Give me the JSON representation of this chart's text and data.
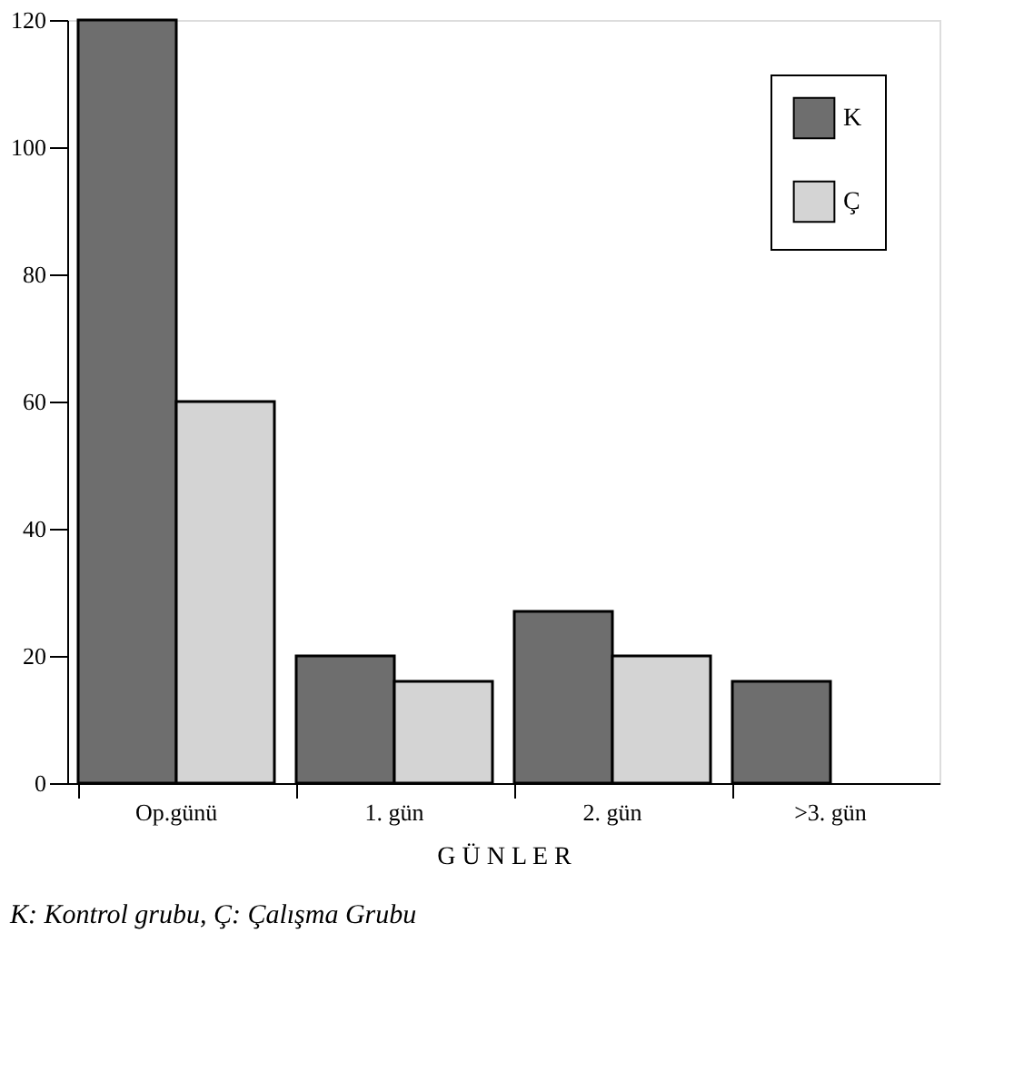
{
  "chart_data": {
    "type": "bar",
    "xlabel": "G Ü N L E R",
    "categories": [
      "Op.günü",
      "1. gün",
      "2. gün",
      ">3. gün"
    ],
    "series": [
      {
        "name": "K",
        "color": "#6e6e6e",
        "values": [
          120,
          20,
          27,
          16
        ]
      },
      {
        "name": "Ç",
        "color": "#d4d4d4",
        "values": [
          60,
          16,
          20,
          null
        ]
      }
    ],
    "ylim": [
      0,
      120
    ],
    "yticks": [
      0,
      20,
      40,
      60,
      80,
      100,
      120
    ],
    "grid": false,
    "legend": "top right",
    "annotations": [
      "K: Kontrol grubu, Ç: Çalışma Grubu"
    ]
  }
}
